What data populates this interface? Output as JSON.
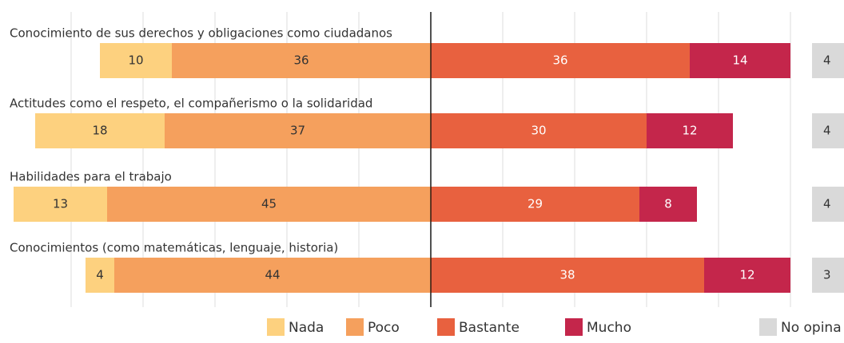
{
  "chart_data": {
    "type": "diverging_bar",
    "categories": [
      "Conocimiento de sus derechos y obligaciones como ciudadanos",
      "Actitudes como el respeto, el compañerismo o la solidaridad",
      "Habilidades para el trabajo",
      "Conocimientos (como matemáticas, lenguaje, historia)"
    ],
    "series": [
      {
        "name": "Nada",
        "color": "#fdd17f",
        "values": [
          10,
          18,
          13,
          4
        ]
      },
      {
        "name": "Poco",
        "color": "#f5a05d",
        "values": [
          36,
          37,
          45,
          44
        ]
      },
      {
        "name": "Bastante",
        "color": "#e8613f",
        "values": [
          36,
          30,
          29,
          38
        ]
      },
      {
        "name": "Mucho",
        "color": "#c4264b",
        "values": [
          14,
          12,
          8,
          12
        ]
      }
    ],
    "no_opina": {
      "name": "No opina",
      "color": "#d9d9d9",
      "values": [
        4,
        4,
        4,
        3
      ]
    },
    "xlim": [
      -50,
      50
    ],
    "xticks": [
      -50,
      -40,
      -30,
      -20,
      -10,
      0,
      10,
      20,
      30,
      40,
      50
    ],
    "grid": true
  }
}
